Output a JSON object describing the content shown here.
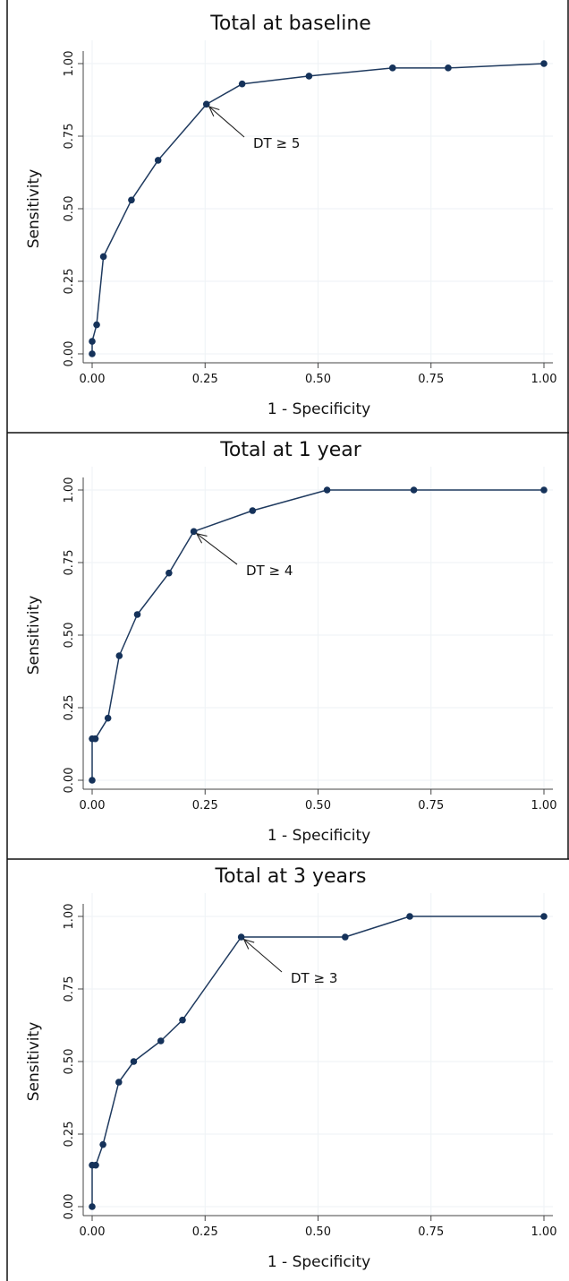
{
  "chart_data": [
    {
      "type": "line",
      "title": "Total at baseline",
      "xlabel": "1 - Specificity",
      "ylabel": "Sensitivity",
      "xlim": [
        0,
        1
      ],
      "ylim": [
        0,
        1
      ],
      "xticks": [
        "0.00",
        "0.25",
        "0.50",
        "0.75",
        "1.00"
      ],
      "yticks": [
        "0.00",
        "0.25",
        "0.50",
        "0.75",
        "1.00"
      ],
      "grid": true,
      "markers": true,
      "series": [
        {
          "x": [
            0.0,
            0.0,
            0.01,
            0.025,
            0.087,
            0.146,
            0.253,
            0.332,
            0.48,
            0.665,
            0.788,
            1.0
          ],
          "y": [
            0.0,
            0.043,
            0.1,
            0.335,
            0.53,
            0.667,
            0.86,
            0.93,
            0.957,
            0.985,
            0.985,
            1.0
          ]
        }
      ],
      "annotations": [
        {
          "text": "DT ≥ 5",
          "x": 0.253,
          "y": 0.86,
          "arrow": true
        }
      ]
    },
    {
      "type": "line",
      "title": "Total at 1 year",
      "xlabel": "1 - Specificity",
      "ylabel": "Sensitivity",
      "xlim": [
        0,
        1
      ],
      "ylim": [
        0,
        1
      ],
      "xticks": [
        "0.00",
        "0.25",
        "0.50",
        "0.75",
        "1.00"
      ],
      "yticks": [
        "0.00",
        "0.25",
        "0.50",
        "0.75",
        "1.00"
      ],
      "grid": true,
      "markers": true,
      "series": [
        {
          "x": [
            0.0,
            0.0,
            0.007,
            0.035,
            0.06,
            0.1,
            0.17,
            0.225,
            0.355,
            0.52,
            0.712,
            1.0
          ],
          "y": [
            0.0,
            0.143,
            0.143,
            0.214,
            0.429,
            0.571,
            0.714,
            0.857,
            0.929,
            1.0,
            1.0,
            1.0
          ]
        }
      ],
      "annotations": [
        {
          "text": "DT ≥ 4",
          "x": 0.225,
          "y": 0.857,
          "arrow": true
        }
      ]
    },
    {
      "type": "line",
      "title": "Total at 3 years",
      "xlabel": "1 - Specificity",
      "ylabel": "Sensitivity",
      "xlim": [
        0,
        1
      ],
      "ylim": [
        0,
        1
      ],
      "xticks": [
        "0.00",
        "0.25",
        "0.50",
        "0.75",
        "1.00"
      ],
      "yticks": [
        "0.00",
        "0.25",
        "0.50",
        "0.75",
        "1.00"
      ],
      "grid": true,
      "markers": true,
      "series": [
        {
          "x": [
            0.0,
            0.0,
            0.008,
            0.024,
            0.059,
            0.092,
            0.152,
            0.2,
            0.33,
            0.56,
            0.703,
            1.0
          ],
          "y": [
            0.0,
            0.143,
            0.143,
            0.214,
            0.429,
            0.5,
            0.571,
            0.643,
            0.929,
            0.929,
            1.0,
            1.0
          ]
        }
      ],
      "annotations": [
        {
          "text": "DT ≥ 3",
          "x": 0.33,
          "y": 0.929,
          "arrow": true
        }
      ]
    }
  ],
  "colors": {
    "line": "#1f3a5f",
    "marker": "#15325a",
    "grid": "#eef2f5",
    "axis": "#444444",
    "frame": "#111111",
    "text": "#111111"
  }
}
